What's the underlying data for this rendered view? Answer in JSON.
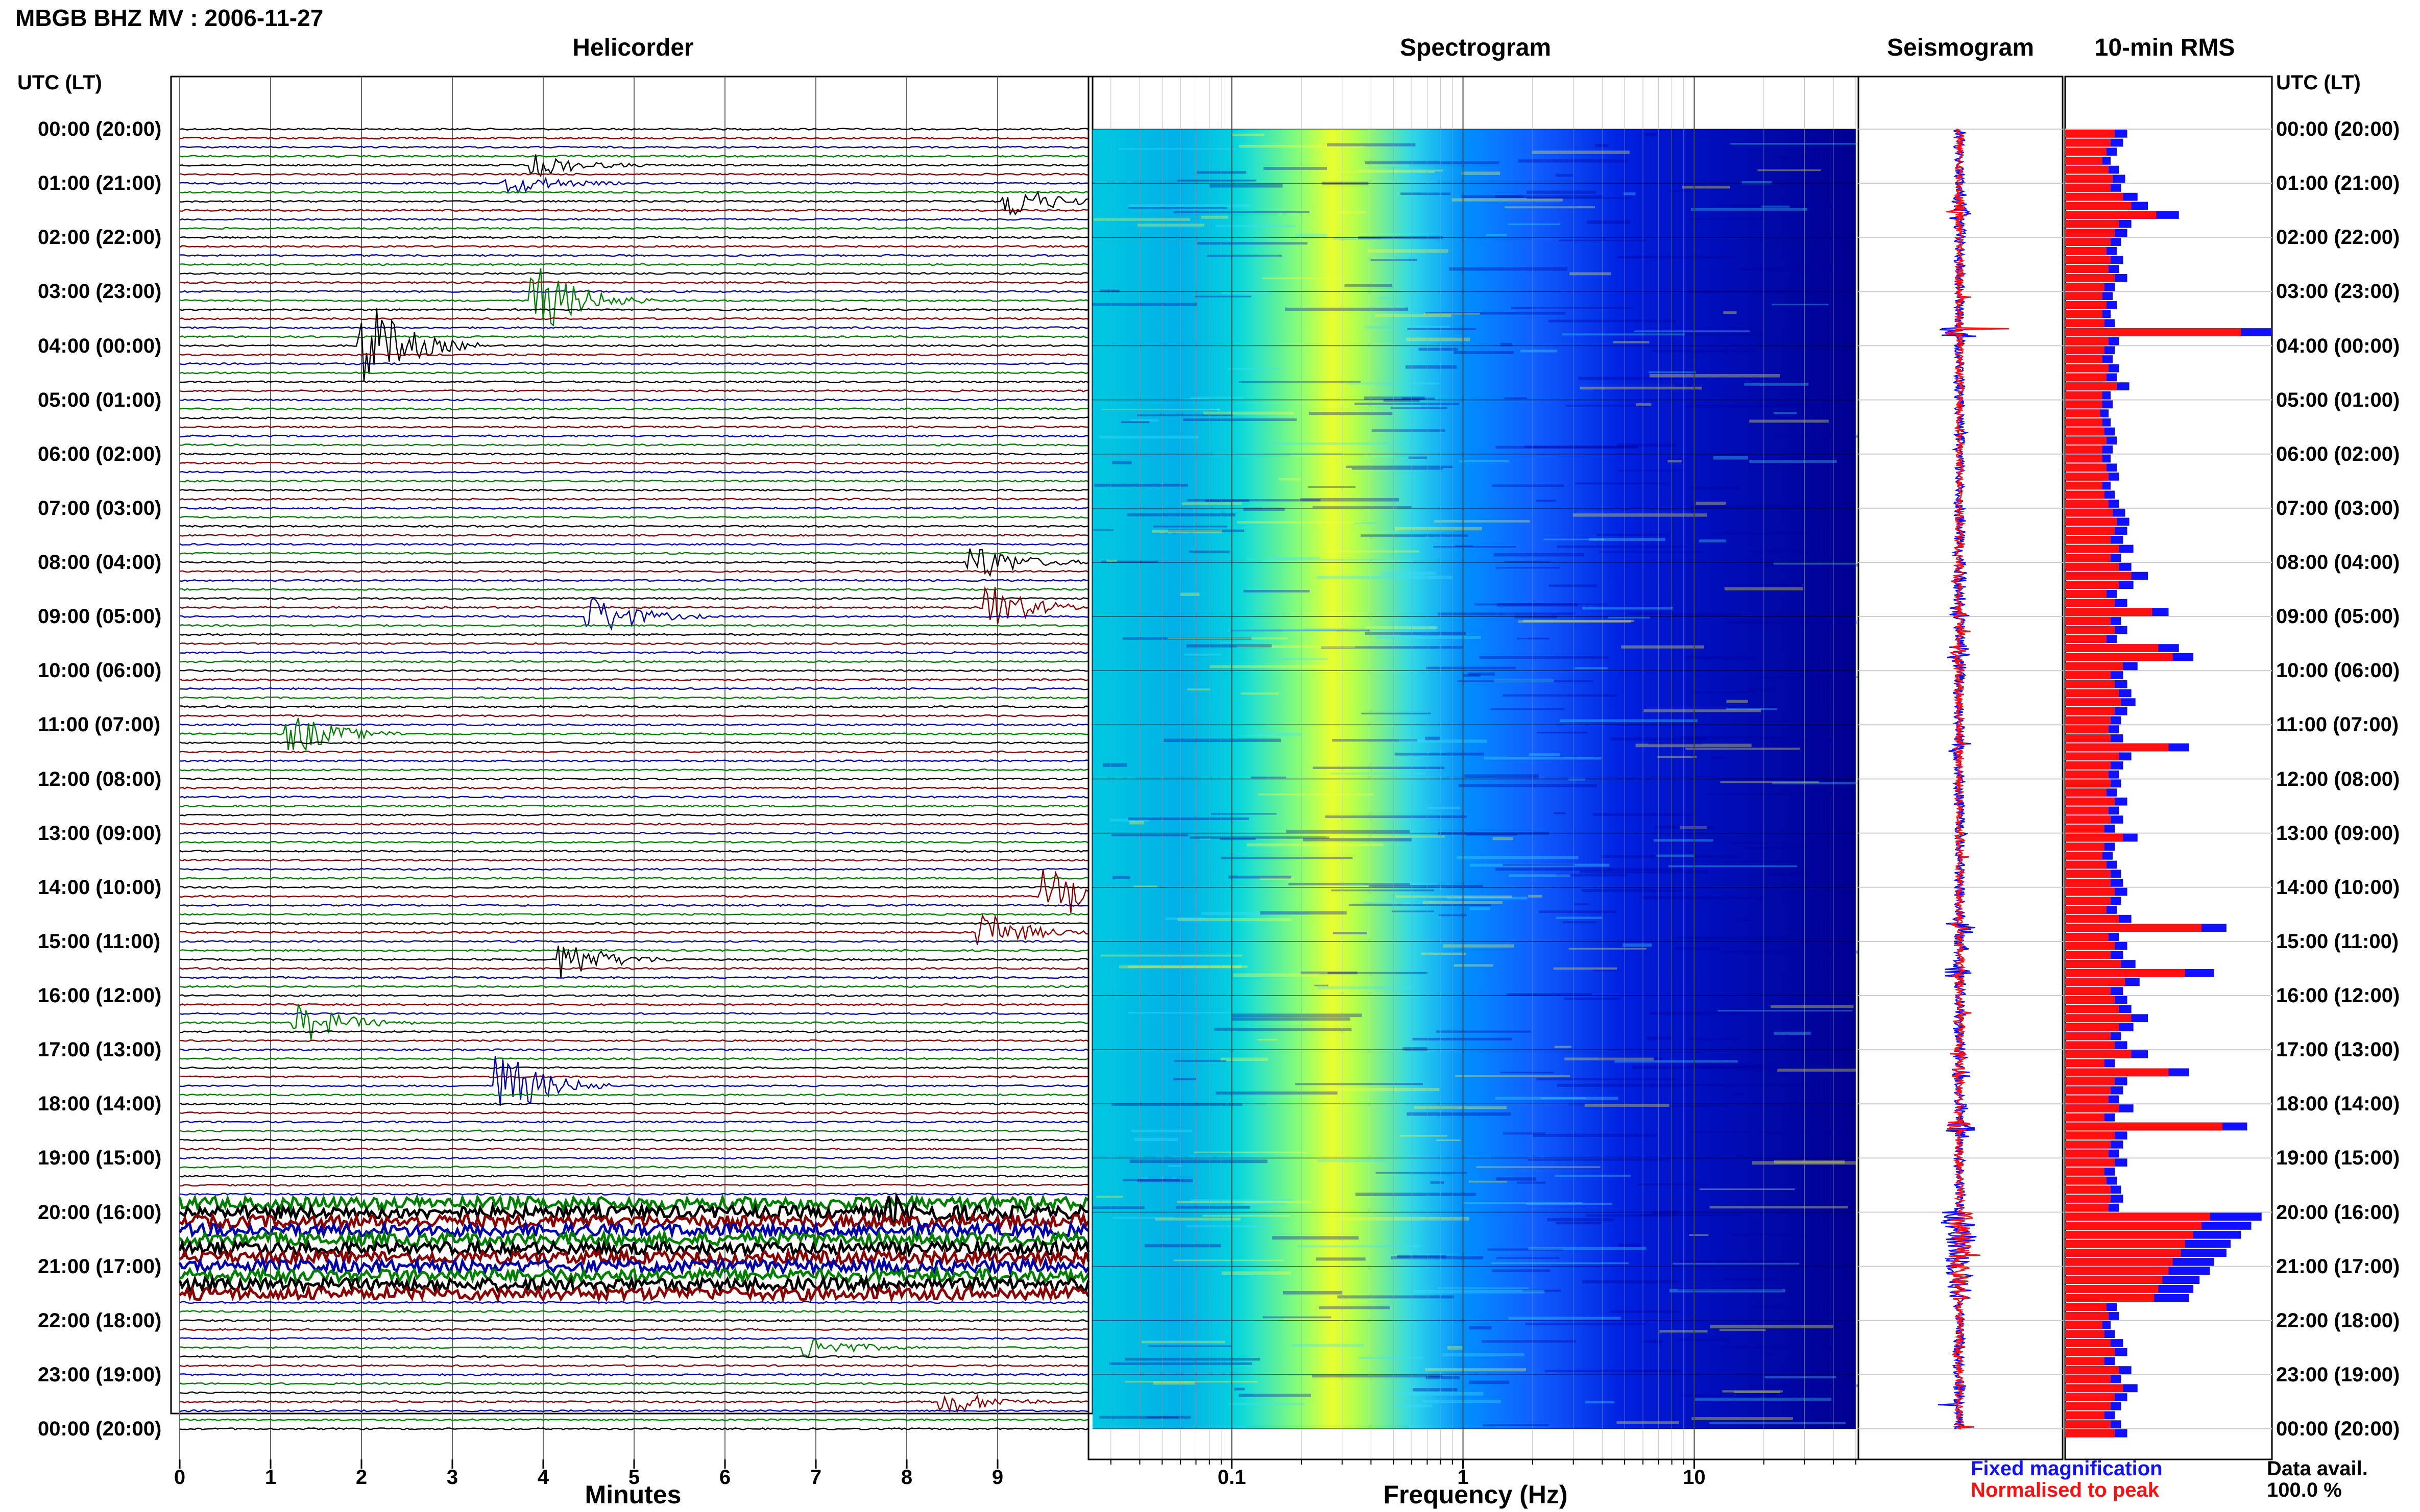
{
  "header": {
    "title": "MBGB BHZ MV : 2006-11-27"
  },
  "panels": {
    "helicorder": "Helicorder",
    "spectrogram": "Spectrogram",
    "seismogram": "Seismogram",
    "rms": "10-min RMS"
  },
  "time_axis_label": "UTC (LT)",
  "time_labels": [
    "00:00 (20:00)",
    "01:00 (21:00)",
    "02:00 (22:00)",
    "03:00 (23:00)",
    "04:00 (00:00)",
    "05:00 (01:00)",
    "06:00 (02:00)",
    "07:00 (03:00)",
    "08:00 (04:00)",
    "09:00 (05:00)",
    "10:00 (06:00)",
    "11:00 (07:00)",
    "12:00 (08:00)",
    "13:00 (09:00)",
    "14:00 (10:00)",
    "15:00 (11:00)",
    "16:00 (12:00)",
    "17:00 (13:00)",
    "18:00 (14:00)",
    "19:00 (15:00)",
    "20:00 (16:00)",
    "21:00 (17:00)",
    "22:00 (18:00)",
    "23:00 (19:00)",
    "00:00 (20:00)"
  ],
  "helicorder_axis": {
    "title": "Minutes",
    "ticks": [
      "0",
      "1",
      "2",
      "3",
      "4",
      "5",
      "6",
      "7",
      "8",
      "9"
    ]
  },
  "spectrogram_axis": {
    "title": "Frequency (Hz)",
    "ticks": [
      "0.1",
      "1",
      "10"
    ]
  },
  "legend": {
    "fixed": "Fixed magnification",
    "normalised": "Normalised to peak",
    "fixed_color": "#1010ff",
    "normalised_color": "#ff1010"
  },
  "data_avail": {
    "label": "Data avail.",
    "value": "100.0 %"
  },
  "chart_data": [
    {
      "type": "line",
      "name": "helicorder",
      "x_range_minutes": [
        0,
        10
      ],
      "lines_per_hour": 6,
      "hours": 24,
      "trace_colors": [
        "#000000",
        "#8b0000",
        "#0000b0",
        "#008000"
      ],
      "events": [
        {
          "hour": 0.6,
          "minute": 4.0,
          "amp": 0.5
        },
        {
          "hour": 0.95,
          "minute": 3.7,
          "amp": 0.5
        },
        {
          "hour": 1.3,
          "minute": 9.2,
          "amp": 0.8
        },
        {
          "hour": 3.2,
          "minute": 4.0,
          "amp": 1.6
        },
        {
          "hour": 3.95,
          "minute": 2.1,
          "amp": 2.2
        },
        {
          "hour": 8.0,
          "minute": 8.8,
          "amp": 0.9
        },
        {
          "hour": 8.8,
          "minute": 9.0,
          "amp": 1.0
        },
        {
          "hour": 9.0,
          "minute": 4.6,
          "amp": 1.0
        },
        {
          "hour": 11.1,
          "minute": 1.3,
          "amp": 1.0
        },
        {
          "hour": 14.1,
          "minute": 9.6,
          "amp": 1.4
        },
        {
          "hour": 14.9,
          "minute": 8.9,
          "amp": 0.9
        },
        {
          "hour": 15.35,
          "minute": 4.3,
          "amp": 0.9
        },
        {
          "hour": 16.5,
          "minute": 1.4,
          "amp": 0.9
        },
        {
          "hour": 17.7,
          "minute": 3.6,
          "amp": 1.6
        },
        {
          "hour": 20.0,
          "minute": 7.9,
          "amp": 0.5
        },
        {
          "hour": 22.5,
          "minute": 7.0,
          "amp": 0.5
        },
        {
          "hour": 23.55,
          "minute": 8.5,
          "amp": 0.6
        }
      ],
      "noisy_band_hours": [
        19.8,
        21.5
      ]
    },
    {
      "type": "heatmap",
      "name": "spectrogram",
      "x_scale": "log",
      "x_range_hz": [
        0.025,
        50
      ],
      "y_range_hours": [
        0,
        24
      ],
      "colormap": [
        "#00008b",
        "#0000ff",
        "#0080ff",
        "#00d0ff",
        "#40ffc0",
        "#c0ff40",
        "#ffff00"
      ],
      "peak_frequency_hz": 0.25
    },
    {
      "type": "line",
      "name": "seismogram",
      "y_range_hours": [
        0,
        24
      ]
    },
    {
      "type": "bar",
      "name": "rms_10min",
      "orientation": "horizontal",
      "y_range_hours": [
        0,
        24
      ],
      "series": [
        {
          "name": "Fixed magnification",
          "color": "#1010ff",
          "values": [
            0.3,
            0.28,
            0.25,
            0.22,
            0.26,
            0.29,
            0.27,
            0.35,
            0.4,
            0.55,
            0.32,
            0.3,
            0.27,
            0.25,
            0.28,
            0.26,
            0.3,
            0.24,
            0.23,
            0.25,
            0.22,
            0.24,
            1.0,
            0.26,
            0.24,
            0.23,
            0.26,
            0.25,
            0.31,
            0.22,
            0.23,
            0.21,
            0.22,
            0.24,
            0.25,
            0.23,
            0.22,
            0.25,
            0.26,
            0.22,
            0.24,
            0.26,
            0.29,
            0.31,
            0.3,
            0.28,
            0.33,
            0.27,
            0.32,
            0.4,
            0.33,
            0.25,
            0.3,
            0.5,
            0.27,
            0.3,
            0.25,
            0.55,
            0.62,
            0.35,
            0.28,
            0.3,
            0.32,
            0.34,
            0.3,
            0.27,
            0.26,
            0.28,
            0.6,
            0.32,
            0.28,
            0.26,
            0.27,
            0.25,
            0.3,
            0.26,
            0.28,
            0.24,
            0.35,
            0.24,
            0.23,
            0.25,
            0.27,
            0.28,
            0.3,
            0.27,
            0.25,
            0.32,
            0.78,
            0.26,
            0.3,
            0.28,
            0.34,
            0.72,
            0.36,
            0.28,
            0.3,
            0.32,
            0.4,
            0.33,
            0.27,
            0.3,
            0.4,
            0.24,
            0.6,
            0.3,
            0.28,
            0.26,
            0.33,
            0.24,
            0.88,
            0.3,
            0.28,
            0.26,
            0.3,
            0.24,
            0.25,
            0.27,
            0.28,
            0.26,
            0.95,
            0.9,
            0.85,
            0.8,
            0.78,
            0.72,
            0.7,
            0.65,
            0.62,
            0.6,
            0.25,
            0.26,
            0.22,
            0.24,
            0.28,
            0.3,
            0.24,
            0.32,
            0.27,
            0.35,
            0.3,
            0.27,
            0.24,
            0.27,
            0.3
          ]
        },
        {
          "name": "Normalised to peak",
          "color": "#ff1010",
          "values": [
            0.24,
            0.22,
            0.2,
            0.18,
            0.21,
            0.23,
            0.22,
            0.28,
            0.32,
            0.44,
            0.26,
            0.24,
            0.22,
            0.2,
            0.22,
            0.21,
            0.24,
            0.19,
            0.18,
            0.2,
            0.18,
            0.19,
            0.85,
            0.21,
            0.19,
            0.18,
            0.21,
            0.2,
            0.25,
            0.18,
            0.18,
            0.17,
            0.18,
            0.19,
            0.2,
            0.18,
            0.18,
            0.2,
            0.21,
            0.18,
            0.19,
            0.21,
            0.23,
            0.25,
            0.24,
            0.22,
            0.26,
            0.22,
            0.26,
            0.32,
            0.26,
            0.2,
            0.24,
            0.42,
            0.22,
            0.24,
            0.2,
            0.45,
            0.52,
            0.28,
            0.22,
            0.24,
            0.26,
            0.27,
            0.24,
            0.22,
            0.21,
            0.22,
            0.5,
            0.26,
            0.22,
            0.21,
            0.22,
            0.2,
            0.24,
            0.21,
            0.22,
            0.19,
            0.28,
            0.19,
            0.18,
            0.2,
            0.22,
            0.22,
            0.24,
            0.22,
            0.2,
            0.26,
            0.66,
            0.21,
            0.24,
            0.22,
            0.27,
            0.58,
            0.29,
            0.22,
            0.24,
            0.26,
            0.32,
            0.26,
            0.22,
            0.24,
            0.32,
            0.19,
            0.5,
            0.24,
            0.22,
            0.21,
            0.26,
            0.19,
            0.76,
            0.24,
            0.22,
            0.21,
            0.24,
            0.19,
            0.2,
            0.22,
            0.22,
            0.21,
            0.7,
            0.66,
            0.62,
            0.58,
            0.56,
            0.52,
            0.5,
            0.47,
            0.45,
            0.43,
            0.2,
            0.21,
            0.18,
            0.19,
            0.22,
            0.24,
            0.19,
            0.26,
            0.22,
            0.28,
            0.24,
            0.22,
            0.19,
            0.22,
            0.24
          ]
        }
      ]
    }
  ]
}
